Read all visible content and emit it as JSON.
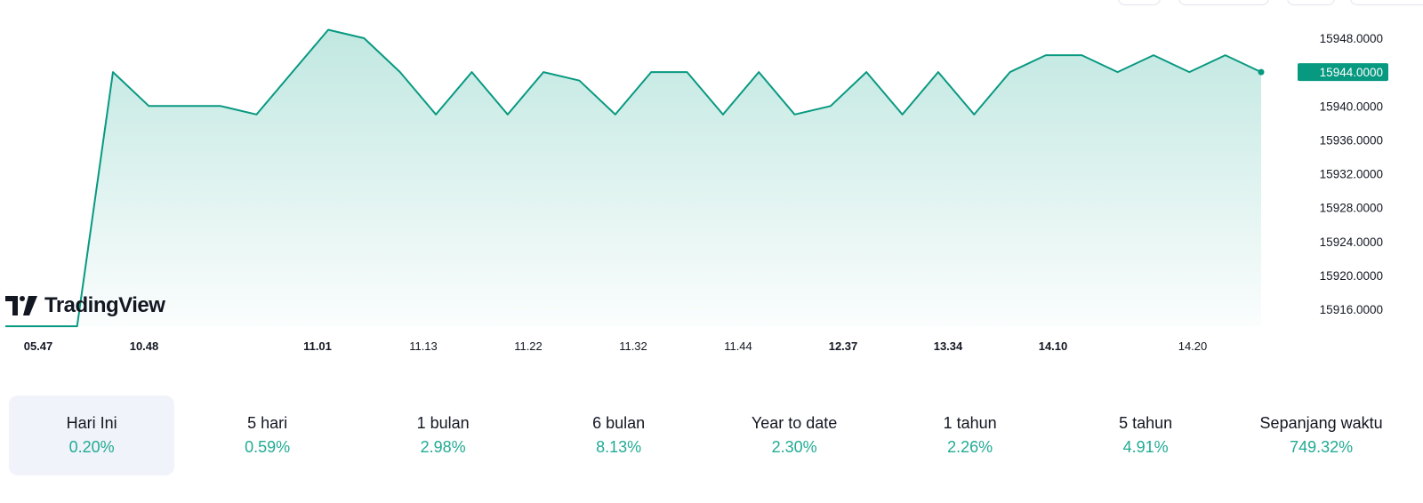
{
  "chart_data": {
    "type": "area",
    "x_tick_labels": [
      {
        "label": "05.47",
        "bold": true
      },
      {
        "label": "10.48",
        "bold": true
      },
      {
        "label": "11.01",
        "bold": true
      },
      {
        "label": "11.13",
        "bold": false
      },
      {
        "label": "11.22",
        "bold": false
      },
      {
        "label": "11.32",
        "bold": false
      },
      {
        "label": "11.44",
        "bold": false
      },
      {
        "label": "12.37",
        "bold": true
      },
      {
        "label": "13.34",
        "bold": true
      },
      {
        "label": "14.10",
        "bold": true
      },
      {
        "label": "14.20",
        "bold": false
      }
    ],
    "values": [
      15914,
      15914,
      15914,
      15944,
      15940,
      15940,
      15940,
      15939,
      15944,
      15949,
      15948,
      15944,
      15939,
      15944,
      15939,
      15944,
      15943,
      15939,
      15944,
      15944,
      15939,
      15944,
      15939,
      15940,
      15944,
      15939,
      15944,
      15939,
      15944,
      15946,
      15946,
      15944,
      15946,
      15944,
      15946,
      15944
    ],
    "y_ticks": [
      "15948.0000",
      "15944.0000",
      "15940.0000",
      "15936.0000",
      "15932.0000",
      "15928.0000",
      "15924.0000",
      "15920.0000",
      "15916.0000"
    ],
    "ylim": [
      15914,
      15948
    ],
    "last_value": "15944.0000",
    "line_color": "#089981",
    "fill_color": "#22ab94"
  },
  "brand": {
    "name": "TradingView"
  },
  "periods": [
    {
      "label": "Hari Ini",
      "value": "0.20%"
    },
    {
      "label": "5 hari",
      "value": "0.59%"
    },
    {
      "label": "1 bulan",
      "value": "2.98%"
    },
    {
      "label": "6 bulan",
      "value": "8.13%"
    },
    {
      "label": "Year to date",
      "value": "2.30%"
    },
    {
      "label": "1 tahun",
      "value": "2.26%"
    },
    {
      "label": "5 tahun",
      "value": "4.91%"
    },
    {
      "label": "Sepanjang waktu",
      "value": "749.32%"
    }
  ]
}
